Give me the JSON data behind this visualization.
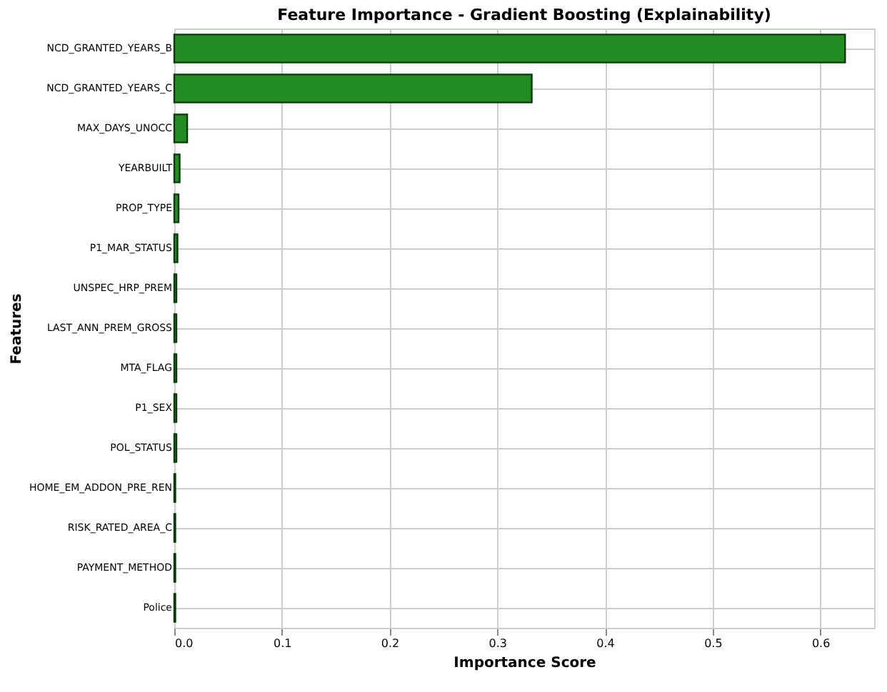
{
  "chart_data": {
    "type": "bar",
    "orientation": "horizontal",
    "title": "Feature Importance - Gradient Boosting (Explainability)",
    "xlabel": "Importance Score",
    "ylabel": "Features",
    "categories": [
      "NCD_GRANTED_YEARS_B",
      "NCD_GRANTED_YEARS_C",
      "MAX_DAYS_UNOCC",
      "YEARBUILT",
      "PROP_TYPE",
      "P1_MAR_STATUS",
      "UNSPEC_HRP_PREM",
      "LAST_ANN_PREM_GROSS",
      "MTA_FLAG",
      "P1_SEX",
      "POL_STATUS",
      "HOME_EM_ADDON_PRE_REN",
      "RISK_RATED_AREA_C",
      "PAYMENT_METHOD",
      "Police"
    ],
    "values": [
      0.623,
      0.332,
      0.012,
      0.005,
      0.004,
      0.003,
      0.002,
      0.002,
      0.002,
      0.002,
      0.002,
      0.001,
      0.001,
      0.001,
      0.001
    ],
    "color": "#228b22",
    "xlim": [
      0,
      0.65
    ],
    "xticks": [
      {
        "value": 0,
        "label": "0.0"
      },
      0.1,
      0.2,
      0.3,
      0.4,
      0.5,
      0.6
    ],
    "grid": true
  }
}
